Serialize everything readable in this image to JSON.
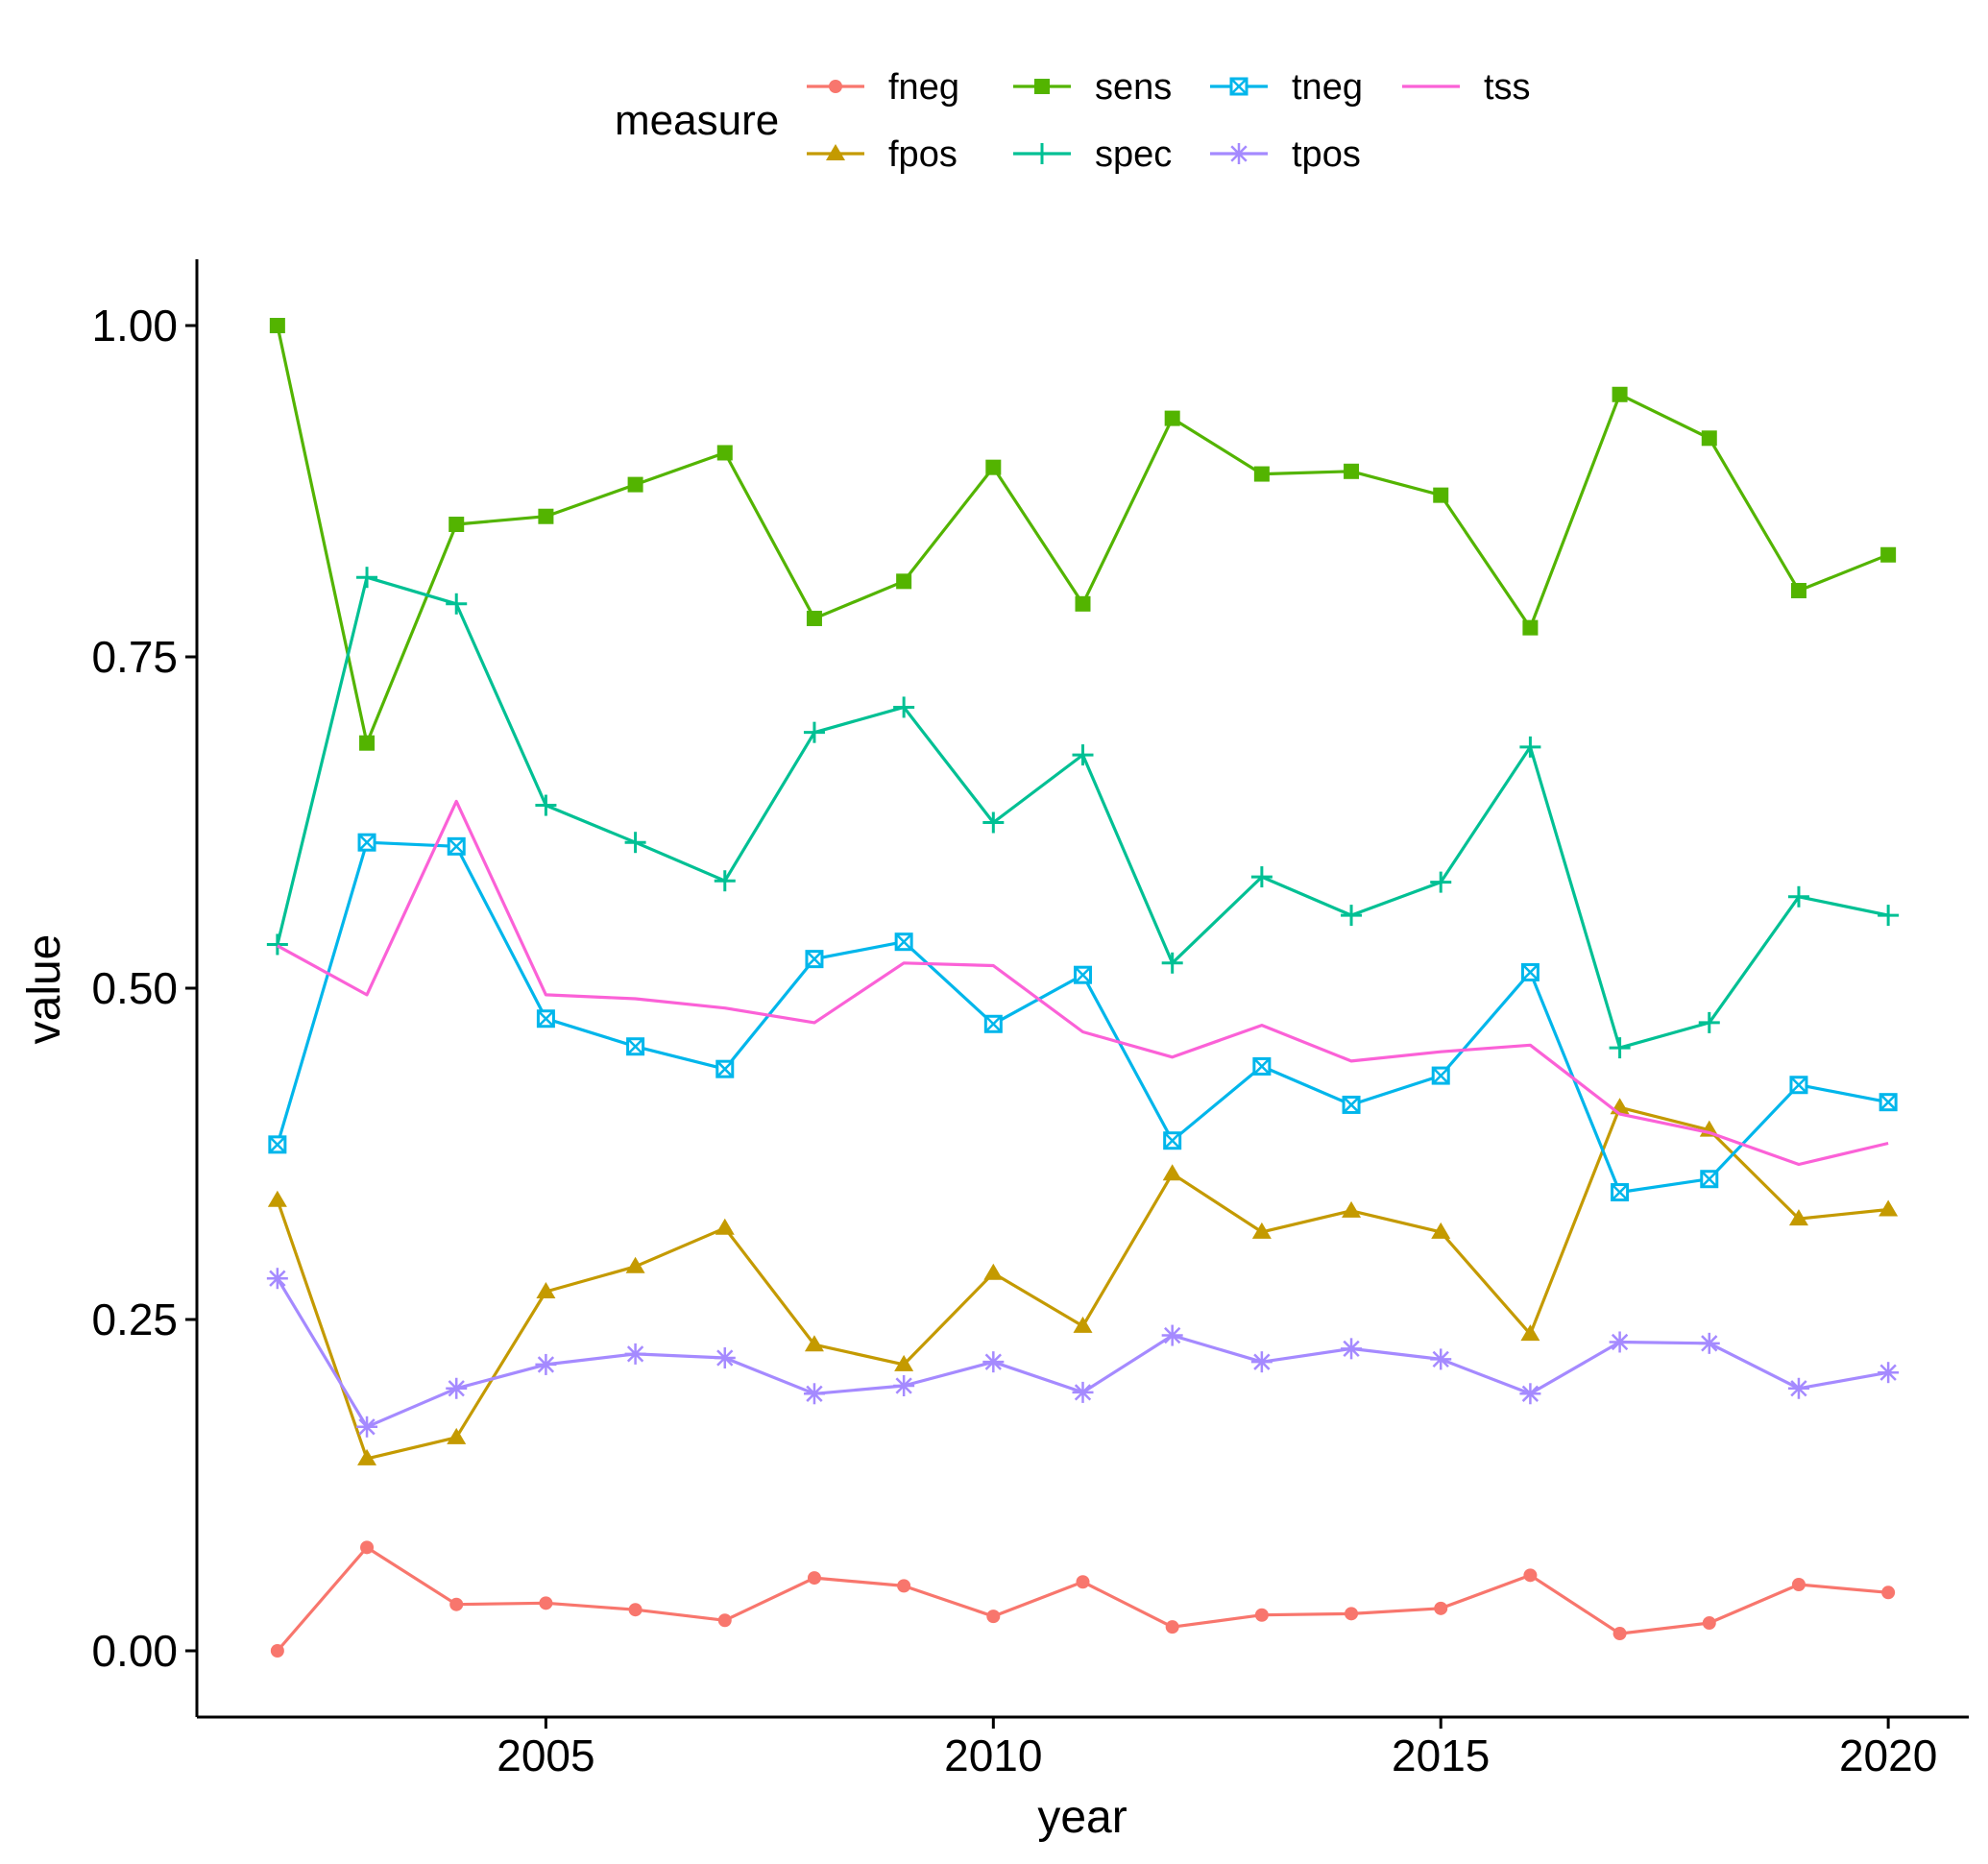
{
  "chart_data": {
    "type": "line",
    "title": "",
    "xlabel": "year",
    "ylabel": "value",
    "xlim": [
      2001.1,
      2020.9
    ],
    "ylim": [
      -0.05,
      1.05
    ],
    "x_ticks": [
      2005,
      2010,
      2015,
      2020
    ],
    "y_ticks": [
      0.0,
      0.25,
      0.5,
      0.75,
      1.0
    ],
    "y_tick_labels": [
      "0.00",
      "0.25",
      "0.50",
      "0.75",
      "1.00"
    ],
    "grid": false,
    "legend_position": "top",
    "legend_title": "measure",
    "x": [
      2002,
      2003,
      2004,
      2005,
      2006,
      2007,
      2008,
      2009,
      2010,
      2011,
      2012,
      2013,
      2014,
      2015,
      2016,
      2017,
      2018,
      2019,
      2020
    ],
    "series": [
      {
        "name": "fneg",
        "color": "#F8766D",
        "marker": "circle",
        "values": [
          0.0,
          0.078,
          0.035,
          0.036,
          0.031,
          0.023,
          0.055,
          0.049,
          0.026,
          0.052,
          0.018,
          0.027,
          0.028,
          0.032,
          0.057,
          0.013,
          0.021,
          0.05,
          0.044
        ]
      },
      {
        "name": "fpos",
        "color": "#C49A00",
        "marker": "triangle",
        "values": [
          0.34,
          0.145,
          0.161,
          0.271,
          0.29,
          0.319,
          0.231,
          0.216,
          0.285,
          0.245,
          0.36,
          0.316,
          0.332,
          0.316,
          0.239,
          0.41,
          0.393,
          0.326,
          0.333
        ]
      },
      {
        "name": "sens",
        "color": "#53B400",
        "marker": "square",
        "values": [
          1.0,
          0.685,
          0.85,
          0.856,
          0.88,
          0.904,
          0.779,
          0.807,
          0.893,
          0.79,
          0.93,
          0.888,
          0.89,
          0.872,
          0.772,
          0.948,
          0.915,
          0.8,
          0.827
        ]
      },
      {
        "name": "spec",
        "color": "#00C094",
        "marker": "plus",
        "values": [
          0.533,
          0.81,
          0.79,
          0.638,
          0.61,
          0.581,
          0.693,
          0.712,
          0.625,
          0.676,
          0.519,
          0.584,
          0.555,
          0.58,
          0.682,
          0.455,
          0.474,
          0.569,
          0.555
        ]
      },
      {
        "name": "tneg",
        "color": "#00B6EB",
        "marker": "square-x",
        "values": [
          0.382,
          0.61,
          0.607,
          0.477,
          0.456,
          0.439,
          0.522,
          0.535,
          0.473,
          0.51,
          0.385,
          0.441,
          0.412,
          0.434,
          0.512,
          0.346,
          0.356,
          0.427,
          0.414
        ]
      },
      {
        "name": "tpos",
        "color": "#A58AFF",
        "marker": "asterisk",
        "values": [
          0.281,
          0.169,
          0.198,
          0.216,
          0.224,
          0.221,
          0.194,
          0.2,
          0.218,
          0.195,
          0.238,
          0.218,
          0.228,
          0.22,
          0.194,
          0.233,
          0.232,
          0.198,
          0.21
        ]
      },
      {
        "name": "tss",
        "color": "#FB61D7",
        "marker": "none",
        "values": [
          0.532,
          0.495,
          0.641,
          0.495,
          0.492,
          0.485,
          0.474,
          0.519,
          0.517,
          0.467,
          0.448,
          0.472,
          0.445,
          0.452,
          0.457,
          0.405,
          0.391,
          0.367,
          0.383
        ]
      }
    ]
  }
}
